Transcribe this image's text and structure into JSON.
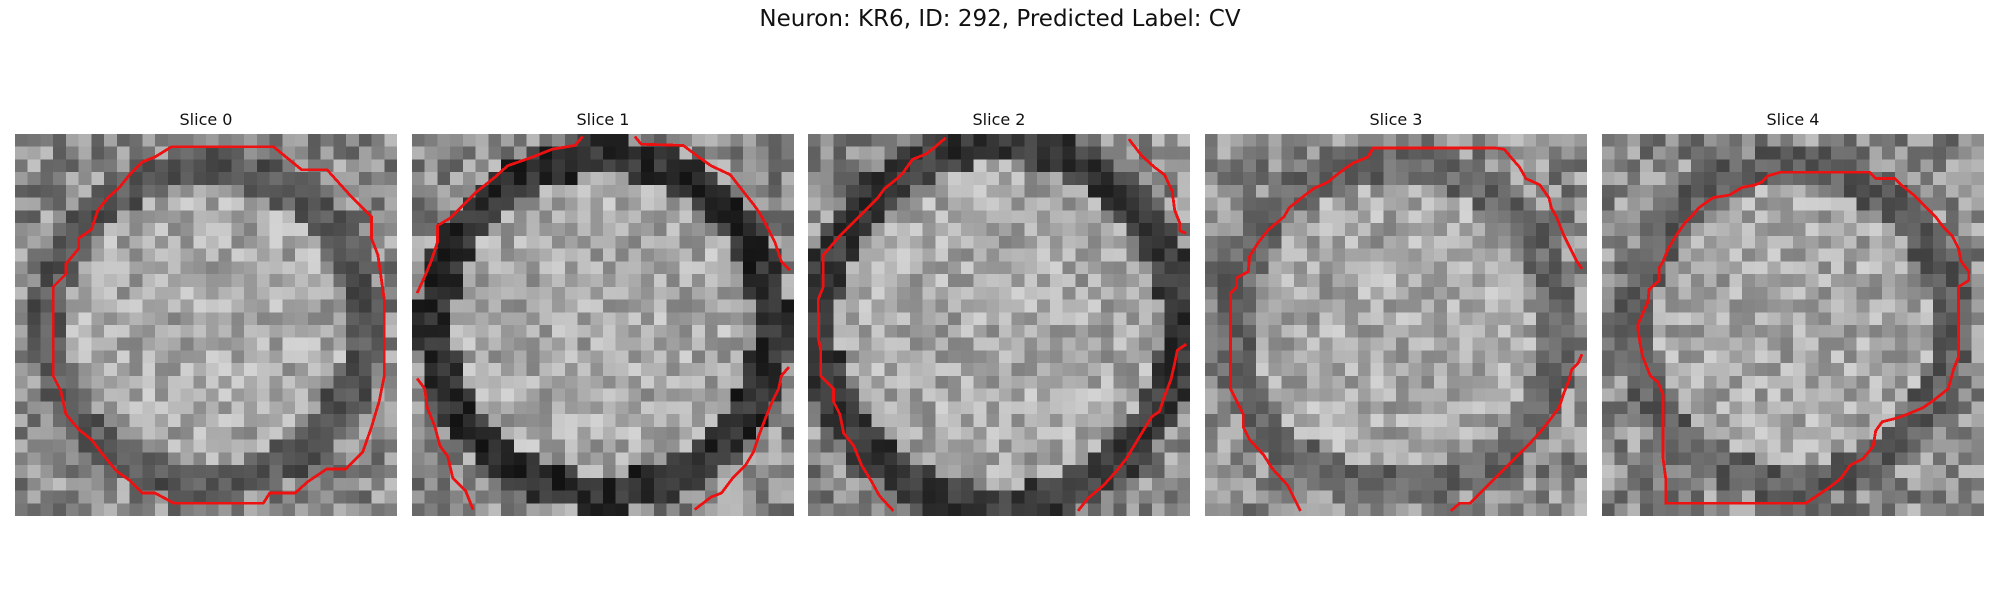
{
  "figure": {
    "title": "Neuron: KR6, ID: 292, Predicted Label: CV",
    "contour_color": "#ee1111",
    "colormap": "gray"
  },
  "slices": [
    {
      "title": "Slice 0",
      "seed": 11,
      "ring_radius": 0.4,
      "ring_dark": 0.34
    },
    {
      "title": "Slice 1",
      "seed": 23,
      "ring_radius": 0.43,
      "ring_dark": 0.18
    },
    {
      "title": "Slice 2",
      "seed": 37,
      "ring_radius": 0.46,
      "ring_dark": 0.22
    },
    {
      "title": "Slice 3",
      "seed": 51,
      "ring_radius": 0.42,
      "ring_dark": 0.4
    },
    {
      "title": "Slice 4",
      "seed": 67,
      "ring_radius": 0.4,
      "ring_dark": 0.36
    }
  ]
}
